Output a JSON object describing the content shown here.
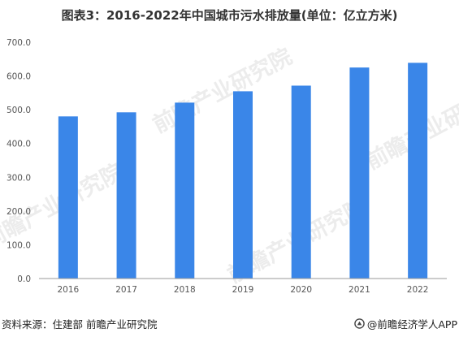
{
  "title": "图表3：2016-2022年中国城市污水排放量(单位：亿立方米)",
  "source": "资料来源：住建部 前瞻产业研究院",
  "brand": "@前瞻经济学人APP",
  "watermark": "前瞻产业研究院",
  "colors": {
    "bar": "#3a86e8",
    "text": "#333333"
  },
  "chart_data": {
    "type": "bar",
    "title": "图表3：2016-2022年中国城市污水排放量(单位：亿立方米)",
    "xlabel": "",
    "ylabel": "",
    "categories": [
      "2016",
      "2017",
      "2018",
      "2019",
      "2020",
      "2021",
      "2022"
    ],
    "values": [
      480.3,
      492.4,
      521.1,
      554.7,
      571.4,
      625.1,
      639.0
    ],
    "ylim": [
      0,
      700
    ],
    "yticks": [
      0,
      100,
      200,
      300,
      400,
      500,
      600,
      700
    ],
    "ytick_labels": [
      "0.0",
      "100.0",
      "200.0",
      "300.0",
      "400.0",
      "500.0",
      "600.0",
      "700.0"
    ],
    "grid": false,
    "legend": "none"
  }
}
